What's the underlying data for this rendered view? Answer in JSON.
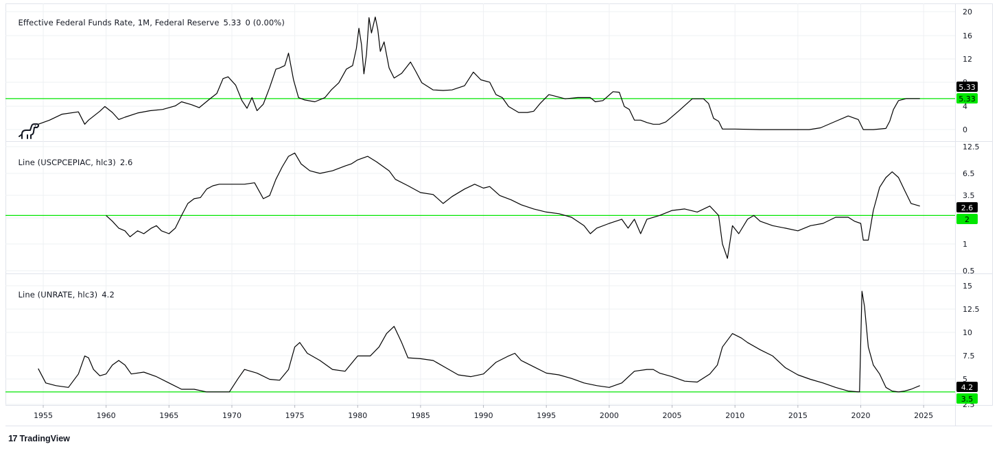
{
  "colors": {
    "line": "#000000",
    "level": "#00e600",
    "grid": "#eef0f3",
    "border": "#e0e3eb"
  },
  "icons": {
    "watermark": "dinosaur-icon",
    "brand": "tradingview-logo-icon"
  },
  "brand": {
    "logo_mark": "17",
    "label": "TradingView"
  },
  "x_axis": {
    "tick_labels": [
      "1955",
      "1960",
      "1965",
      "1970",
      "1975",
      "1980",
      "1985",
      "1990",
      "1995",
      "2000",
      "2005",
      "2010",
      "2015",
      "2020",
      "2025"
    ]
  },
  "panes": [
    {
      "title": "Effective Federal Funds Rate, 1M, Federal Reserve",
      "last_value": "5.33",
      "change": "0 (0.00%)",
      "tick_labels": [
        "20",
        "16",
        "12",
        "8",
        "4",
        "0"
      ],
      "last_tag": "5.33",
      "level_tag": "5.33"
    },
    {
      "title": "Line (USCPCEPIAC, hlc3)",
      "last_value": "2.6",
      "tick_labels": [
        "12.5",
        "6.5",
        "3.5",
        "2",
        "1",
        "0.5"
      ],
      "last_tag": "2.6",
      "level_tag": "2"
    },
    {
      "title": "Line (UNRATE, hlc3)",
      "last_value": "4.2",
      "tick_labels": [
        "15",
        "12.5",
        "10",
        "7.5",
        "5",
        "2.5"
      ],
      "last_tag": "4.2",
      "level_tag": "3.5"
    }
  ],
  "chart_data": [
    {
      "type": "line",
      "title": "Effective Federal Funds Rate, 1M, Federal Reserve",
      "x_range": [
        1952,
        2027.5
      ],
      "y_scale": "linear",
      "ylim": [
        0,
        20
      ],
      "horizontal_line": 5.33,
      "series": [
        {
          "x": [
            1954.6,
            1955.5,
            1956.5,
            1957.8,
            1958.3,
            1958.6,
            1959.5,
            1959.9,
            1960.5,
            1961.0,
            1961.5,
            1962.5,
            1963.5,
            1964.5,
            1965.5,
            1966.0,
            1966.8,
            1967.4,
            1968.2,
            1968.8,
            1969.3,
            1969.7,
            1970.3,
            1970.8,
            1971.2,
            1971.6,
            1972.0,
            1972.5,
            1973.0,
            1973.5,
            1973.8,
            1974.2,
            1974.5,
            1974.9,
            1975.3,
            1975.8,
            1976.6,
            1977.4,
            1977.9,
            1978.5,
            1979.1,
            1979.6,
            1979.9,
            1980.1,
            1980.3,
            1980.5,
            1980.7,
            1980.9,
            1981.1,
            1981.4,
            1981.6,
            1981.8,
            1982.1,
            1982.5,
            1982.9,
            1983.5,
            1984.2,
            1984.6,
            1985.1,
            1986.0,
            1986.8,
            1987.5,
            1988.5,
            1989.2,
            1989.8,
            1990.5,
            1991.0,
            1991.5,
            1992.0,
            1992.8,
            1993.5,
            1994.0,
            1994.5,
            1995.2,
            1995.6,
            1996.5,
            1997.5,
            1998.5,
            1998.9,
            1999.5,
            2000.3,
            2000.8,
            2001.2,
            2001.6,
            2002.0,
            2002.5,
            2003.0,
            2003.5,
            2004.0,
            2004.5,
            2005.5,
            2006.6,
            2007.5,
            2007.9,
            2008.3,
            2008.7,
            2009.0,
            2010,
            2012,
            2015.9,
            2016.8,
            2018.0,
            2019.0,
            2019.8,
            2020.2,
            2021.0,
            2022.0,
            2022.3,
            2022.6,
            2023.0,
            2023.6,
            2024.7
          ],
          "values": [
            1.0,
            1.7,
            2.7,
            3.1,
            1.0,
            1.7,
            3.2,
            4.0,
            3.0,
            1.8,
            2.2,
            2.9,
            3.3,
            3.5,
            4.1,
            4.8,
            4.3,
            3.8,
            5.2,
            6.2,
            8.7,
            9.0,
            7.6,
            5.0,
            3.7,
            5.5,
            3.3,
            4.4,
            7.2,
            10.3,
            10.5,
            10.9,
            13.0,
            8.5,
            5.5,
            5.1,
            4.8,
            5.5,
            6.8,
            8.0,
            10.3,
            10.9,
            13.8,
            17.2,
            14.5,
            9.5,
            12.8,
            19.0,
            16.4,
            19.1,
            17.0,
            13.3,
            14.9,
            10.5,
            8.8,
            9.6,
            11.5,
            10.0,
            8.0,
            6.8,
            6.7,
            6.8,
            7.5,
            9.8,
            8.5,
            8.1,
            6.0,
            5.5,
            4.0,
            3.0,
            3.0,
            3.2,
            4.5,
            6.0,
            5.8,
            5.3,
            5.5,
            5.5,
            4.8,
            5.0,
            6.5,
            6.4,
            4.0,
            3.5,
            1.7,
            1.7,
            1.3,
            1.0,
            1.0,
            1.4,
            3.2,
            5.3,
            5.3,
            4.5,
            2.0,
            1.5,
            0.2,
            0.2,
            0.1,
            0.1,
            0.4,
            1.5,
            2.4,
            1.8,
            0.1,
            0.1,
            0.3,
            1.5,
            3.5,
            5.0,
            5.33,
            5.33
          ]
        }
      ]
    },
    {
      "type": "line",
      "title": "Line (USCPCEPIAC, hlc3)",
      "x_range": [
        1952,
        2027.5
      ],
      "y_scale": "log",
      "ylim": [
        0.45,
        13.5
      ],
      "horizontal_line": 2,
      "series": [
        {
          "x": [
            1960.0,
            1960.5,
            1961.0,
            1961.5,
            1961.9,
            1962.5,
            1963.0,
            1963.6,
            1964.0,
            1964.4,
            1965.0,
            1965.5,
            1966.0,
            1966.5,
            1967.0,
            1967.5,
            1968.0,
            1968.5,
            1969.0,
            1970.0,
            1971.0,
            1971.8,
            1972.5,
            1973.0,
            1973.5,
            1974.0,
            1974.5,
            1975.0,
            1975.5,
            1976.2,
            1977.0,
            1978.0,
            1979.0,
            1979.5,
            1980.0,
            1980.8,
            1981.5,
            1982.5,
            1983.0,
            1984.0,
            1985.0,
            1986.0,
            1986.8,
            1987.5,
            1988.5,
            1989.3,
            1990.0,
            1990.5,
            1991.3,
            1992.2,
            1993.0,
            1994.0,
            1995.0,
            1996.0,
            1997.0,
            1998.0,
            1998.5,
            1999.0,
            2000.0,
            2001.0,
            2001.5,
            2002.0,
            2002.5,
            2003.0,
            2004.0,
            2005.0,
            2006.0,
            2007.0,
            2008.0,
            2008.7,
            2009.0,
            2009.4,
            2009.8,
            2010.3,
            2011.0,
            2011.5,
            2012.0,
            2013.0,
            2014.0,
            2015.0,
            2016.0,
            2017.0,
            2018.0,
            2019.0,
            2019.5,
            2020.0,
            2020.2,
            2020.6,
            2021.0,
            2021.5,
            2022.0,
            2022.5,
            2023.0,
            2023.5,
            2024.0,
            2024.7
          ],
          "values": [
            2.0,
            1.7,
            1.4,
            1.3,
            1.1,
            1.3,
            1.2,
            1.4,
            1.5,
            1.3,
            1.2,
            1.4,
            2.0,
            2.8,
            3.2,
            3.3,
            4.2,
            4.6,
            4.8,
            4.8,
            4.8,
            5.0,
            3.2,
            3.5,
            5.5,
            7.8,
            10.5,
            11.5,
            8.5,
            7.0,
            6.5,
            7.0,
            8.0,
            8.5,
            9.5,
            10.5,
            9.0,
            7.0,
            5.5,
            4.6,
            3.8,
            3.6,
            2.8,
            3.4,
            4.2,
            4.8,
            4.3,
            4.5,
            3.5,
            3.1,
            2.7,
            2.4,
            2.2,
            2.1,
            1.9,
            1.5,
            1.2,
            1.4,
            1.6,
            1.8,
            1.4,
            1.8,
            1.2,
            1.8,
            2.0,
            2.3,
            2.4,
            2.2,
            2.6,
            2.0,
            0.9,
            0.6,
            1.5,
            1.2,
            1.8,
            2.0,
            1.7,
            1.5,
            1.4,
            1.3,
            1.5,
            1.6,
            1.9,
            1.9,
            1.7,
            1.6,
            1.0,
            1.0,
            2.3,
            4.4,
            5.8,
            6.8,
            5.8,
            4.0,
            2.8,
            2.6
          ]
        }
      ]
    },
    {
      "type": "line",
      "title": "Line (UNRATE, hlc3)",
      "x_range": [
        1952,
        2027.5
      ],
      "y_scale": "linear",
      "ylim": [
        2.5,
        16
      ],
      "horizontal_line": 3.5,
      "series": [
        {
          "x": [
            1954.6,
            1955.2,
            1956.0,
            1957.0,
            1957.8,
            1958.3,
            1958.6,
            1959.0,
            1959.5,
            1960.0,
            1960.5,
            1961.0,
            1961.5,
            1962.0,
            1963.0,
            1964.0,
            1965.0,
            1966.0,
            1967.0,
            1968.0,
            1969.0,
            1969.8,
            1970.5,
            1971.0,
            1972.0,
            1973.0,
            1973.8,
            1974.5,
            1975.0,
            1975.4,
            1976.0,
            1977.0,
            1978.0,
            1979.0,
            1980.0,
            1980.5,
            1981.0,
            1981.7,
            1982.3,
            1982.9,
            1983.5,
            1984.0,
            1985.0,
            1986.0,
            1987.0,
            1988.0,
            1989.0,
            1990.0,
            1991.0,
            1992.0,
            1992.5,
            1993.0,
            1994.0,
            1995.0,
            1996.0,
            1997.0,
            1998.0,
            1999.0,
            2000.0,
            2001.0,
            2002.0,
            2003.0,
            2003.5,
            2004.0,
            2005.0,
            2006.0,
            2007.0,
            2008.0,
            2008.6,
            2009.0,
            2009.8,
            2010.5,
            2011.0,
            2012.0,
            2013.0,
            2014.0,
            2015.0,
            2016.0,
            2017.0,
            2018.0,
            2019.0,
            2019.9,
            2020.1,
            2020.3,
            2020.6,
            2021.0,
            2021.5,
            2022.0,
            2022.5,
            2023.0,
            2023.5,
            2024.0,
            2024.7
          ],
          "values": [
            6.1,
            4.5,
            4.2,
            4.0,
            5.5,
            7.5,
            7.3,
            6.0,
            5.3,
            5.5,
            6.5,
            7.0,
            6.5,
            5.5,
            5.7,
            5.2,
            4.5,
            3.8,
            3.8,
            3.5,
            3.5,
            3.5,
            5.0,
            6.0,
            5.6,
            4.9,
            4.8,
            6.0,
            8.5,
            9.0,
            7.8,
            7.0,
            6.0,
            5.8,
            7.5,
            7.5,
            7.5,
            8.5,
            10.0,
            10.8,
            9.0,
            7.3,
            7.2,
            7.0,
            6.2,
            5.4,
            5.2,
            5.5,
            6.8,
            7.5,
            7.8,
            7.0,
            6.3,
            5.6,
            5.4,
            5.0,
            4.5,
            4.2,
            4.0,
            4.5,
            5.8,
            6.0,
            6.0,
            5.6,
            5.2,
            4.7,
            4.6,
            5.5,
            6.5,
            8.5,
            10.0,
            9.5,
            9.0,
            8.2,
            7.5,
            6.2,
            5.4,
            4.9,
            4.5,
            4.0,
            3.6,
            3.5,
            14.7,
            13.0,
            8.5,
            6.5,
            5.5,
            4.0,
            3.6,
            3.5,
            3.6,
            3.8,
            4.2
          ]
        }
      ]
    }
  ]
}
